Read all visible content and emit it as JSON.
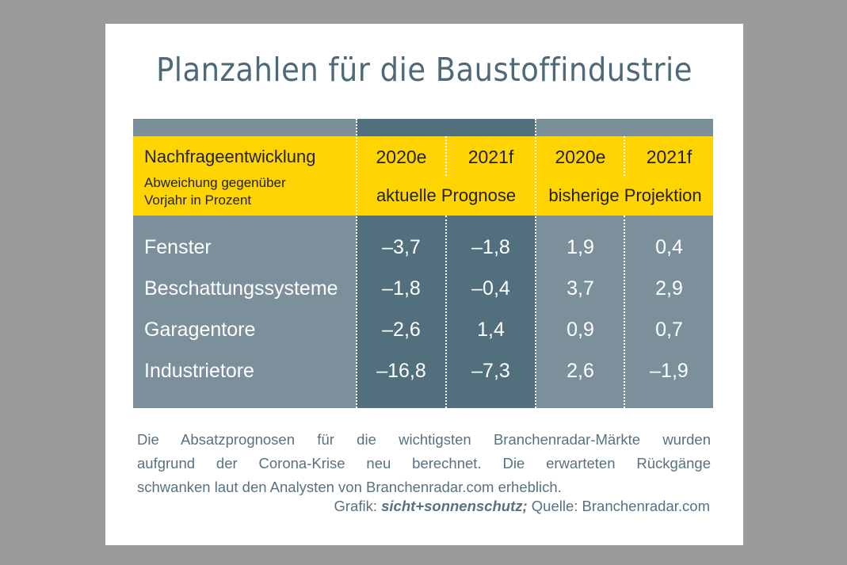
{
  "title": "Planzahlen für die Baustoffindustrie",
  "chart_data": {
    "type": "table",
    "header": {
      "label": "Nachfrageentwicklung",
      "sublabel_lines": [
        "Abweichung gegenüber",
        "Vorjahr in Prozent"
      ],
      "columns": [
        "2020e",
        "2021f",
        "2020e",
        "2021f"
      ],
      "groups": [
        "aktuelle Prognose",
        "bisherige Projektion"
      ]
    },
    "rows": [
      {
        "label": "Fenster",
        "values": [
          "–3,7",
          "–1,8",
          "1,9",
          "0,4"
        ]
      },
      {
        "label": "Beschattungssysteme",
        "values": [
          "–1,8",
          "–0,4",
          "3,7",
          "2,9"
        ]
      },
      {
        "label": "Garagentore",
        "values": [
          "–2,6",
          "1,4",
          "0,9",
          "0,7"
        ]
      },
      {
        "label": "Industrietore",
        "values": [
          "–16,8",
          "–7,3",
          "2,6",
          "–1,9"
        ]
      }
    ]
  },
  "footer": {
    "lines": [
      "Die Absatzprognosen für die wichtigsten Branchenradar-Märkte wurden",
      "aufgrund der Corona-Krise neu berechnet. Die erwarteten Rückgänge",
      "schwanken laut den Analysten von Branchenradar.com erheblich."
    ],
    "credit_prefix": "Grafik:",
    "credit_brand": "sicht+sonnenschutz;",
    "credit_source": "Quelle: Branchenradar.com"
  },
  "colors": {
    "background": "#9b9b9b",
    "title": "#4e6a79",
    "header": "#ffd400",
    "body": "#7b909b",
    "highlight": "#526f7d"
  }
}
